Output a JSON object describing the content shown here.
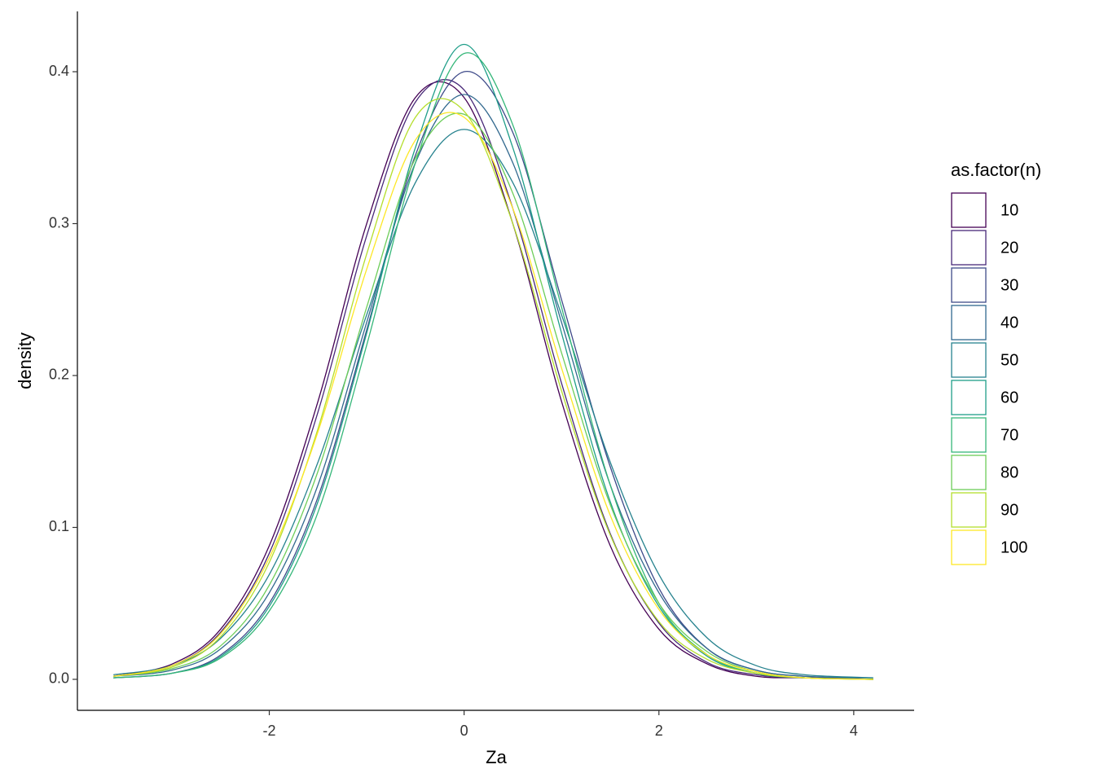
{
  "chart_data": {
    "type": "line",
    "x_label": "Za",
    "y_label": "density",
    "legend_title": "as.factor(n)",
    "legend_position": "right",
    "x": [
      -3.6,
      -3,
      -2.5,
      -2,
      -1.5,
      -1,
      -0.5,
      0,
      0.5,
      1,
      1.5,
      2,
      2.5,
      3,
      3.5,
      4.2
    ],
    "xlim": [
      -3.97,
      4.62
    ],
    "ylim": [
      -0.0204,
      0.4397
    ],
    "xticks": [
      -2,
      0,
      2,
      4
    ],
    "yticks": [
      {
        "value": 0,
        "label": "0.0"
      },
      0.1,
      0.2,
      0.3,
      0.4
    ],
    "series": [
      {
        "name": "10",
        "color": "#440154",
        "values": [
          0.002,
          0.01,
          0.033,
          0.088,
          0.183,
          0.3,
          0.383,
          0.383,
          0.3,
          0.183,
          0.088,
          0.033,
          0.01,
          0.002,
          0.001,
          0
        ]
      },
      {
        "name": "20",
        "color": "#482878",
        "values": [
          0.002,
          0.009,
          0.031,
          0.083,
          0.176,
          0.292,
          0.38,
          0.388,
          0.31,
          0.195,
          0.096,
          0.037,
          0.011,
          0.003,
          0.001,
          0
        ]
      },
      {
        "name": "30",
        "color": "#3E4A89",
        "values": [
          0.001,
          0.004,
          0.016,
          0.05,
          0.12,
          0.23,
          0.345,
          0.4,
          0.36,
          0.25,
          0.14,
          0.06,
          0.02,
          0.006,
          0.002,
          0
        ]
      },
      {
        "name": "40",
        "color": "#31688E",
        "values": [
          0.002,
          0.006,
          0.02,
          0.057,
          0.128,
          0.235,
          0.34,
          0.385,
          0.34,
          0.235,
          0.128,
          0.057,
          0.02,
          0.006,
          0.002,
          0.001
        ]
      },
      {
        "name": "50",
        "color": "#26828E",
        "values": [
          0.003,
          0.009,
          0.027,
          0.069,
          0.143,
          0.24,
          0.327,
          0.362,
          0.327,
          0.24,
          0.143,
          0.069,
          0.027,
          0.009,
          0.003,
          0.001
        ]
      },
      {
        "name": "60",
        "color": "#1F9E89",
        "values": [
          0.001,
          0.004,
          0.015,
          0.048,
          0.117,
          0.228,
          0.35,
          0.418,
          0.35,
          0.228,
          0.117,
          0.048,
          0.015,
          0.004,
          0.001,
          0
        ]
      },
      {
        "name": "70",
        "color": "#35B779",
        "values": [
          0.001,
          0.004,
          0.014,
          0.045,
          0.11,
          0.22,
          0.34,
          0.412,
          0.365,
          0.245,
          0.128,
          0.05,
          0.016,
          0.004,
          0.001,
          0
        ]
      },
      {
        "name": "80",
        "color": "#6DCD59",
        "values": [
          0.002,
          0.007,
          0.022,
          0.062,
          0.137,
          0.245,
          0.343,
          0.372,
          0.32,
          0.215,
          0.115,
          0.05,
          0.018,
          0.005,
          0.001,
          0
        ]
      },
      {
        "name": "90",
        "color": "#B4DE2C",
        "values": [
          0.002,
          0.008,
          0.028,
          0.077,
          0.165,
          0.28,
          0.37,
          0.374,
          0.3,
          0.19,
          0.095,
          0.038,
          0.013,
          0.004,
          0.001,
          0
        ]
      },
      {
        "name": "100",
        "color": "#FDE725",
        "values": [
          0.002,
          0.009,
          0.03,
          0.08,
          0.163,
          0.27,
          0.355,
          0.37,
          0.31,
          0.205,
          0.108,
          0.046,
          0.016,
          0.005,
          0.001,
          0
        ]
      }
    ]
  }
}
